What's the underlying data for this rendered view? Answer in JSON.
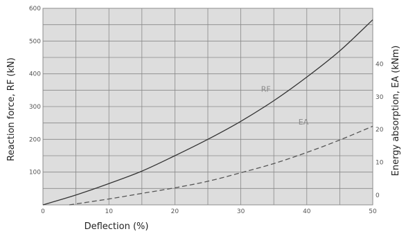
{
  "chart_data": {
    "type": "line",
    "xlabel": "Deflection (%)",
    "ylabel": "Reaction force, RF (kN)",
    "y2label": "Energy absorption, EA (kNm)",
    "xlim": [
      0,
      50
    ],
    "ylim": [
      0,
      600
    ],
    "y2lim": [
      -3,
      57
    ],
    "x_ticks": [
      0,
      10,
      20,
      30,
      40,
      50
    ],
    "y_ticks": [
      100,
      200,
      300,
      400,
      500,
      600
    ],
    "y2_ticks": [
      0,
      10,
      20,
      30,
      40
    ],
    "grid": true,
    "background": "#dddddd",
    "gridcolor": "#888888",
    "series": [
      {
        "name": "RF",
        "axis": "left",
        "style": "solid",
        "color": "#333333",
        "x": [
          0,
          5,
          10,
          15,
          20,
          25,
          30,
          35,
          40,
          45,
          50
        ],
        "values": [
          0,
          30,
          65,
          103,
          150,
          200,
          255,
          318,
          390,
          470,
          565
        ]
      },
      {
        "name": "EA",
        "axis": "right",
        "style": "dashed",
        "color": "#555555",
        "x": [
          4,
          10,
          15,
          20,
          25,
          30,
          35,
          40,
          45,
          50
        ],
        "values": [
          -3,
          -1.2,
          0.5,
          2.2,
          4.2,
          6.8,
          9.6,
          13,
          16.8,
          21
        ]
      }
    ]
  }
}
